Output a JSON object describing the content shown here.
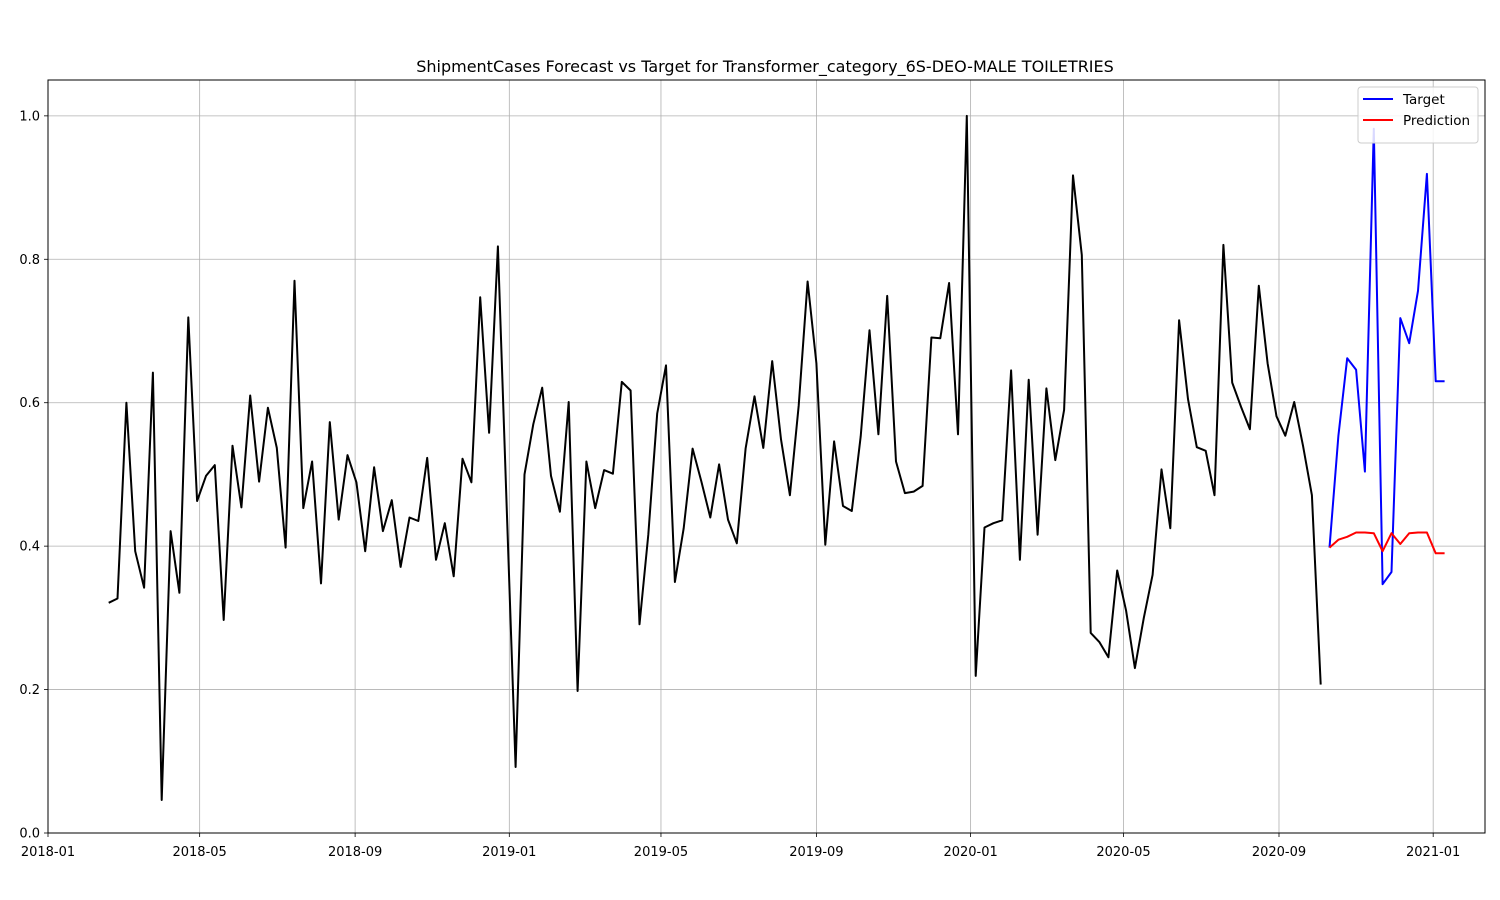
{
  "chart_data": {
    "type": "line",
    "title": "ShipmentCases Forecast vs Target for Transformer_category_6S-DEO-MALE TOILETRIES",
    "xlabel": "",
    "ylabel": "",
    "xlim": [
      "2018-01-01",
      "2021-02-11"
    ],
    "ylim": [
      0.0,
      1.05
    ],
    "x_ticks": [
      "2018-01",
      "2018-05",
      "2018-09",
      "2019-01",
      "2019-05",
      "2019-09",
      "2020-01",
      "2020-05",
      "2020-09",
      "2021-01"
    ],
    "x_tick_dates": [
      "2018-01-01",
      "2018-05-01",
      "2018-09-01",
      "2019-01-01",
      "2019-05-01",
      "2019-09-01",
      "2020-01-01",
      "2020-05-01",
      "2020-09-01",
      "2021-01-01"
    ],
    "y_ticks": [
      "0.0",
      "0.2",
      "0.4",
      "0.6",
      "0.8",
      "1.0"
    ],
    "y_tick_values": [
      0.0,
      0.2,
      0.4,
      0.6,
      0.8,
      1.0
    ],
    "grid": true,
    "legend_position": "top-right",
    "series": [
      {
        "name": "",
        "color": "#000000",
        "x": [
          "2018-02-18",
          "2018-02-25",
          "2018-03-04",
          "2018-03-11",
          "2018-03-18",
          "2018-03-25",
          "2018-04-01",
          "2018-04-08",
          "2018-04-15",
          "2018-04-22",
          "2018-04-29",
          "2018-05-06",
          "2018-05-13",
          "2018-05-20",
          "2018-05-27",
          "2018-06-03",
          "2018-06-10",
          "2018-06-17",
          "2018-06-24",
          "2018-07-01",
          "2018-07-08",
          "2018-07-15",
          "2018-07-22",
          "2018-07-29",
          "2018-08-05",
          "2018-08-12",
          "2018-08-19",
          "2018-08-26",
          "2018-09-02",
          "2018-09-09",
          "2018-09-16",
          "2018-09-23",
          "2018-09-30",
          "2018-10-07",
          "2018-10-14",
          "2018-10-21",
          "2018-10-28",
          "2018-11-04",
          "2018-11-11",
          "2018-11-18",
          "2018-11-25",
          "2018-12-02",
          "2018-12-09",
          "2018-12-16",
          "2018-12-23",
          "2018-12-30",
          "2019-01-06",
          "2019-01-13",
          "2019-01-20",
          "2019-01-27",
          "2019-02-03",
          "2019-02-10",
          "2019-02-17",
          "2019-02-24",
          "2019-03-03",
          "2019-03-10",
          "2019-03-17",
          "2019-03-24",
          "2019-03-31",
          "2019-04-07",
          "2019-04-14",
          "2019-04-21",
          "2019-04-28",
          "2019-05-05",
          "2019-05-12",
          "2019-05-19",
          "2019-05-26",
          "2019-06-02",
          "2019-06-09",
          "2019-06-16",
          "2019-06-23",
          "2019-06-30",
          "2019-07-07",
          "2019-07-14",
          "2019-07-21",
          "2019-07-28",
          "2019-08-04",
          "2019-08-11",
          "2019-08-18",
          "2019-08-25",
          "2019-09-01",
          "2019-09-08",
          "2019-09-15",
          "2019-09-22",
          "2019-09-29",
          "2019-10-06",
          "2019-10-13",
          "2019-10-20",
          "2019-10-27",
          "2019-11-03",
          "2019-11-10",
          "2019-11-17",
          "2019-11-24",
          "2019-12-01",
          "2019-12-08",
          "2019-12-15",
          "2019-12-22",
          "2019-12-29",
          "2020-01-05",
          "2020-01-12",
          "2020-01-19",
          "2020-01-26",
          "2020-02-02",
          "2020-02-09",
          "2020-02-16",
          "2020-02-23",
          "2020-03-01",
          "2020-03-08",
          "2020-03-15",
          "2020-03-22",
          "2020-03-29",
          "2020-04-05",
          "2020-04-12",
          "2020-04-19",
          "2020-04-26",
          "2020-05-03",
          "2020-05-10",
          "2020-05-17",
          "2020-05-24",
          "2020-05-31",
          "2020-06-07",
          "2020-06-14",
          "2020-06-21",
          "2020-06-28",
          "2020-07-05",
          "2020-07-12",
          "2020-07-19",
          "2020-07-26",
          "2020-08-02",
          "2020-08-09",
          "2020-08-16",
          "2020-08-23",
          "2020-08-30",
          "2020-09-06",
          "2020-09-13",
          "2020-09-20",
          "2020-09-27",
          "2020-10-04"
        ],
        "values": [
          0.321,
          0.327,
          0.6,
          0.393,
          0.342,
          0.642,
          0.046,
          0.421,
          0.335,
          0.719,
          0.463,
          0.498,
          0.513,
          0.297,
          0.54,
          0.454,
          0.61,
          0.49,
          0.593,
          0.537,
          0.398,
          0.77,
          0.453,
          0.518,
          0.348,
          0.573,
          0.437,
          0.527,
          0.489,
          0.393,
          0.51,
          0.421,
          0.464,
          0.371,
          0.44,
          0.435,
          0.523,
          0.381,
          0.432,
          0.358,
          0.522,
          0.489,
          0.747,
          0.558,
          0.818,
          0.45,
          0.092,
          0.5,
          0.57,
          0.621,
          0.498,
          0.448,
          0.601,
          0.198,
          0.518,
          0.453,
          0.506,
          0.501,
          0.629,
          0.617,
          0.291,
          0.416,
          0.585,
          0.652,
          0.35,
          0.425,
          0.536,
          0.49,
          0.44,
          0.514,
          0.437,
          0.404,
          0.536,
          0.609,
          0.537,
          0.658,
          0.549,
          0.471,
          0.596,
          0.769,
          0.655,
          0.402,
          0.546,
          0.456,
          0.449,
          0.553,
          0.701,
          0.556,
          0.749,
          0.518,
          0.474,
          0.476,
          0.484,
          0.691,
          0.69,
          0.767,
          0.556,
          1.0,
          0.219,
          0.426,
          0.432,
          0.436,
          0.645,
          0.381,
          0.632,
          0.416,
          0.62,
          0.52,
          0.59,
          0.917,
          0.806,
          0.279,
          0.266,
          0.245,
          0.366,
          0.31,
          0.23,
          0.3,
          0.36,
          0.507,
          0.425,
          0.715,
          0.605,
          0.538,
          0.533,
          0.471,
          0.82,
          0.628,
          0.594,
          0.563,
          0.763,
          0.655,
          0.581,
          0.554,
          0.601,
          0.54,
          0.471,
          0.207
        ]
      },
      {
        "name": "Target",
        "color": "#0000ff",
        "x": [
          "2020-10-11",
          "2020-10-18",
          "2020-10-25",
          "2020-11-01",
          "2020-11-08",
          "2020-11-15",
          "2020-11-22",
          "2020-11-29",
          "2020-12-06",
          "2020-12-13",
          "2020-12-20",
          "2020-12-27",
          "2021-01-03",
          "2021-01-10"
        ],
        "values": [
          0.398,
          0.554,
          0.662,
          0.646,
          0.504,
          0.982,
          0.347,
          0.364,
          0.718,
          0.683,
          0.756,
          0.919,
          0.63,
          0.63
        ]
      },
      {
        "name": "Prediction",
        "color": "#ff0000",
        "x": [
          "2020-10-11",
          "2020-10-18",
          "2020-10-25",
          "2020-11-01",
          "2020-11-08",
          "2020-11-15",
          "2020-11-22",
          "2020-11-29",
          "2020-12-06",
          "2020-12-13",
          "2020-12-20",
          "2020-12-27",
          "2021-01-03",
          "2021-01-10"
        ],
        "values": [
          0.398,
          0.409,
          0.413,
          0.419,
          0.419,
          0.418,
          0.393,
          0.418,
          0.403,
          0.418,
          0.419,
          0.419,
          0.39,
          0.39
        ]
      }
    ]
  }
}
